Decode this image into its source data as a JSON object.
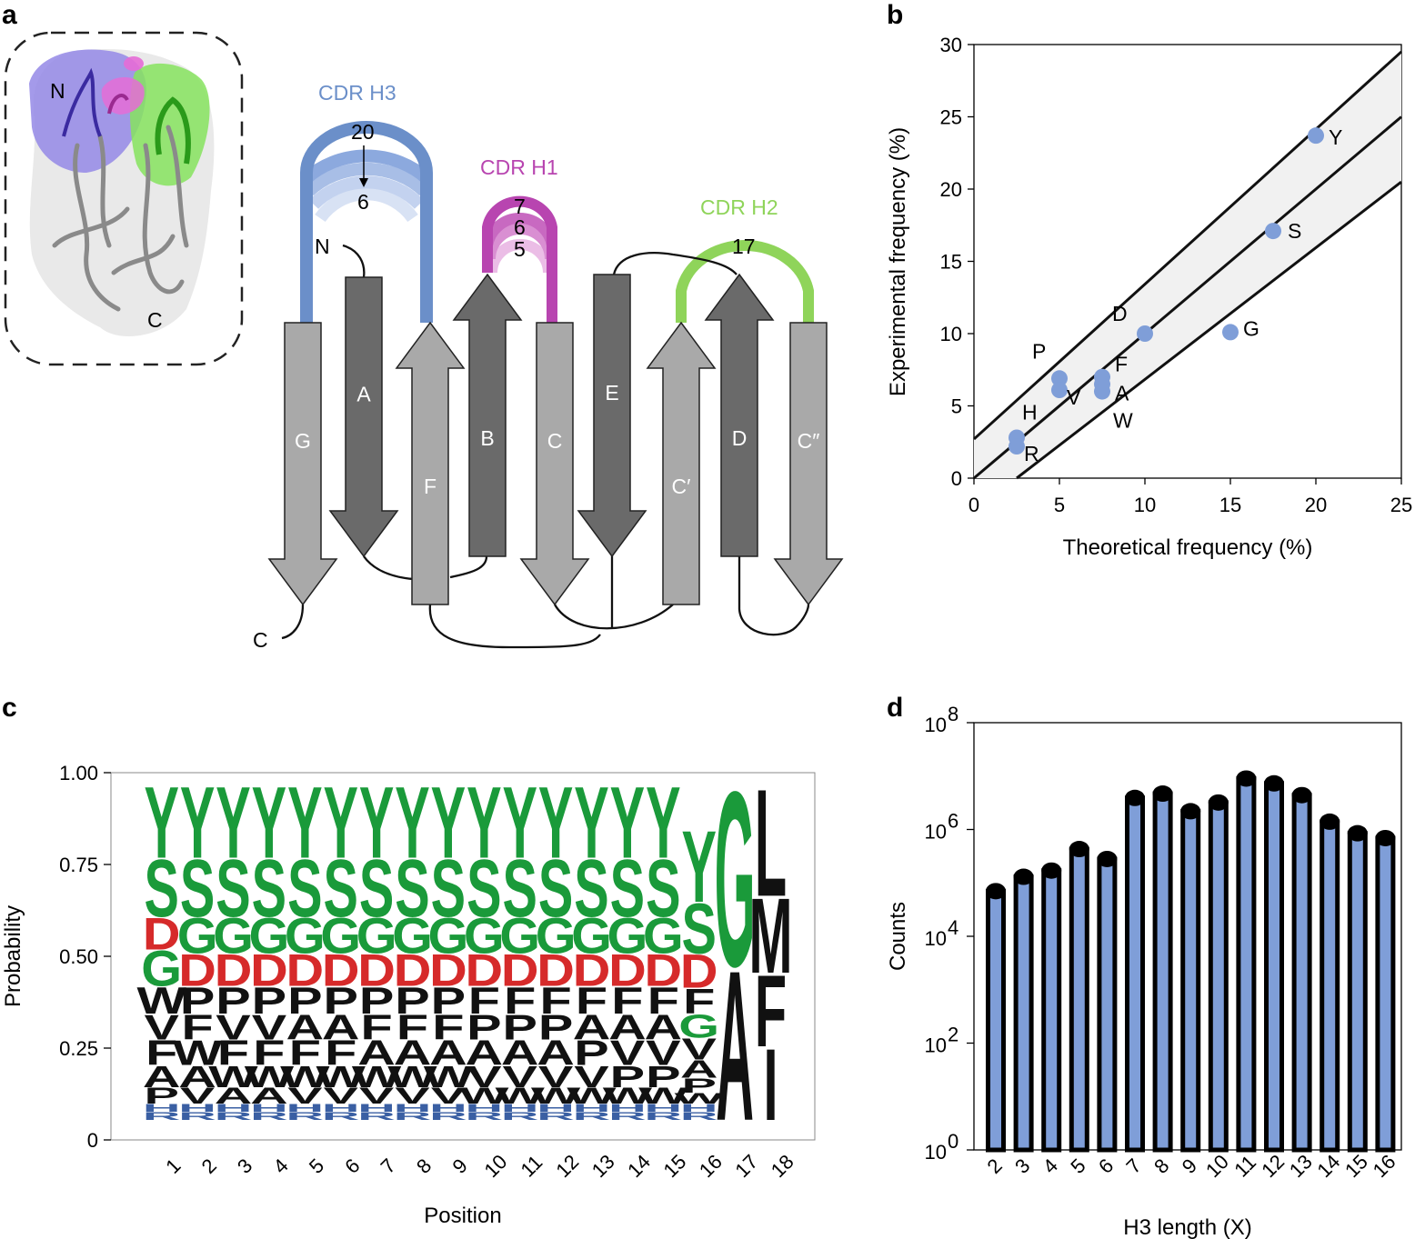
{
  "panels": {
    "a": "a",
    "b": "b",
    "c": "c",
    "d": "d"
  },
  "topology": {
    "structure_labels": {
      "n": "N",
      "c": "C"
    },
    "strands": [
      {
        "label": "G",
        "shade": "light",
        "dir": "down"
      },
      {
        "label": "A",
        "shade": "dark",
        "dir": "down"
      },
      {
        "label": "F",
        "shade": "light",
        "dir": "up"
      },
      {
        "label": "B",
        "shade": "dark",
        "dir": "up"
      },
      {
        "label": "C",
        "shade": "light",
        "dir": "down"
      },
      {
        "label": "E",
        "shade": "dark",
        "dir": "down"
      },
      {
        "label": "C′",
        "shade": "light",
        "dir": "up"
      },
      {
        "label": "D",
        "shade": "dark",
        "dir": "up"
      },
      {
        "label": "C″",
        "shade": "light",
        "dir": "down"
      }
    ],
    "termini": {
      "n": "N",
      "c": "C"
    },
    "cdrs": [
      {
        "name": "CDR H3",
        "color": "#6b8fc9",
        "numbers": [
          "20",
          "6"
        ]
      },
      {
        "name": "CDR H1",
        "color": "#b845b0",
        "numbers": [
          "7",
          "6",
          "5"
        ]
      },
      {
        "name": "CDR H2",
        "color": "#8fd45a",
        "numbers": [
          "17"
        ]
      }
    ]
  },
  "chart_data": [
    {
      "panel": "b",
      "type": "scatter",
      "xlabel": "Theoretical frequency (%)",
      "ylabel": "Experimental frequency (%)",
      "xlim": [
        0,
        25
      ],
      "ylim": [
        0,
        30
      ],
      "xticks": [
        "0",
        "5",
        "10",
        "15",
        "20",
        "25"
      ],
      "yticks": [
        "0",
        "5",
        "10",
        "15",
        "20",
        "25",
        "30"
      ],
      "point_color": "#7f9ed8",
      "points": [
        {
          "label": "Y",
          "x": 20,
          "y": 23.7
        },
        {
          "label": "S",
          "x": 17.5,
          "y": 17.1
        },
        {
          "label": "G",
          "x": 15,
          "y": 10.1
        },
        {
          "label": "D",
          "x": 10,
          "y": 10
        },
        {
          "label": "P",
          "x": 5,
          "y": 6.9
        },
        {
          "label": "V",
          "x": 5,
          "y": 6.1
        },
        {
          "label": "F",
          "x": 7.5,
          "y": 7.0
        },
        {
          "label": "A",
          "x": 7.5,
          "y": 6.5
        },
        {
          "label": "W",
          "x": 7.5,
          "y": 6.0
        },
        {
          "label": "H",
          "x": 2.5,
          "y": 2.8
        },
        {
          "label": "R",
          "x": 2.5,
          "y": 2.2
        }
      ],
      "fit_line": [
        [
          0,
          0
        ],
        [
          25,
          25
        ]
      ],
      "band_upper": [
        [
          0,
          2.7
        ],
        [
          25,
          29.5
        ]
      ],
      "band_lower": [
        [
          2.5,
          0
        ],
        [
          25,
          20.5
        ]
      ]
    },
    {
      "panel": "c",
      "type": "sequence-logo",
      "xlabel": "Position",
      "ylabel": "Probability",
      "ylim": [
        0,
        1
      ],
      "yticks": [
        "0",
        "0.25",
        "0.50",
        "0.75",
        "1.00"
      ],
      "positions": [
        "1",
        "2",
        "3",
        "4",
        "5",
        "6",
        "7",
        "8",
        "9",
        "10",
        "11",
        "12",
        "13",
        "14",
        "15",
        "16",
        "17",
        "18"
      ],
      "stacks": [
        [
          [
            "R",
            0.022
          ],
          [
            "H",
            0.022
          ],
          [
            "P",
            0.045
          ],
          [
            "A",
            0.06
          ],
          [
            "F",
            0.07
          ],
          [
            "V",
            0.07
          ],
          [
            "W",
            0.075
          ],
          [
            "G",
            0.1
          ],
          [
            "D",
            0.09
          ],
          [
            "S",
            0.16
          ],
          [
            "Y",
            0.2
          ]
        ],
        [
          [
            "R",
            0.022
          ],
          [
            "H",
            0.022
          ],
          [
            "V",
            0.045
          ],
          [
            "A",
            0.06
          ],
          [
            "W",
            0.07
          ],
          [
            "F",
            0.07
          ],
          [
            "P",
            0.075
          ],
          [
            "D",
            0.09
          ],
          [
            "G",
            0.1
          ],
          [
            "S",
            0.16
          ],
          [
            "Y",
            0.2
          ]
        ],
        [
          [
            "R",
            0.022
          ],
          [
            "H",
            0.022
          ],
          [
            "A",
            0.045
          ],
          [
            "W",
            0.06
          ],
          [
            "F",
            0.07
          ],
          [
            "V",
            0.07
          ],
          [
            "P",
            0.075
          ],
          [
            "D",
            0.09
          ],
          [
            "G",
            0.1
          ],
          [
            "S",
            0.16
          ],
          [
            "Y",
            0.2
          ]
        ],
        [
          [
            "R",
            0.022
          ],
          [
            "H",
            0.022
          ],
          [
            "A",
            0.045
          ],
          [
            "W",
            0.06
          ],
          [
            "F",
            0.07
          ],
          [
            "V",
            0.07
          ],
          [
            "P",
            0.075
          ],
          [
            "D",
            0.09
          ],
          [
            "G",
            0.1
          ],
          [
            "S",
            0.16
          ],
          [
            "Y",
            0.2
          ]
        ],
        [
          [
            "R",
            0.022
          ],
          [
            "H",
            0.022
          ],
          [
            "V",
            0.045
          ],
          [
            "W",
            0.06
          ],
          [
            "F",
            0.07
          ],
          [
            "A",
            0.07
          ],
          [
            "P",
            0.075
          ],
          [
            "D",
            0.09
          ],
          [
            "G",
            0.1
          ],
          [
            "S",
            0.16
          ],
          [
            "Y",
            0.2
          ]
        ],
        [
          [
            "R",
            0.022
          ],
          [
            "H",
            0.022
          ],
          [
            "V",
            0.045
          ],
          [
            "W",
            0.06
          ],
          [
            "F",
            0.07
          ],
          [
            "A",
            0.07
          ],
          [
            "P",
            0.075
          ],
          [
            "D",
            0.09
          ],
          [
            "G",
            0.1
          ],
          [
            "S",
            0.16
          ],
          [
            "Y",
            0.2
          ]
        ],
        [
          [
            "R",
            0.022
          ],
          [
            "H",
            0.022
          ],
          [
            "V",
            0.045
          ],
          [
            "W",
            0.06
          ],
          [
            "A",
            0.07
          ],
          [
            "F",
            0.07
          ],
          [
            "P",
            0.075
          ],
          [
            "D",
            0.09
          ],
          [
            "G",
            0.1
          ],
          [
            "S",
            0.16
          ],
          [
            "Y",
            0.2
          ]
        ],
        [
          [
            "R",
            0.022
          ],
          [
            "H",
            0.022
          ],
          [
            "V",
            0.045
          ],
          [
            "W",
            0.06
          ],
          [
            "A",
            0.07
          ],
          [
            "F",
            0.07
          ],
          [
            "P",
            0.075
          ],
          [
            "D",
            0.09
          ],
          [
            "G",
            0.1
          ],
          [
            "S",
            0.16
          ],
          [
            "Y",
            0.2
          ]
        ],
        [
          [
            "R",
            0.022
          ],
          [
            "H",
            0.022
          ],
          [
            "V",
            0.045
          ],
          [
            "W",
            0.06
          ],
          [
            "A",
            0.07
          ],
          [
            "F",
            0.07
          ],
          [
            "P",
            0.075
          ],
          [
            "D",
            0.09
          ],
          [
            "G",
            0.1
          ],
          [
            "S",
            0.16
          ],
          [
            "Y",
            0.2
          ]
        ],
        [
          [
            "R",
            0.022
          ],
          [
            "H",
            0.022
          ],
          [
            "W",
            0.045
          ],
          [
            "V",
            0.06
          ],
          [
            "A",
            0.07
          ],
          [
            "P",
            0.07
          ],
          [
            "F",
            0.075
          ],
          [
            "D",
            0.09
          ],
          [
            "G",
            0.1
          ],
          [
            "S",
            0.16
          ],
          [
            "Y",
            0.2
          ]
        ],
        [
          [
            "R",
            0.022
          ],
          [
            "H",
            0.022
          ],
          [
            "W",
            0.045
          ],
          [
            "V",
            0.06
          ],
          [
            "A",
            0.07
          ],
          [
            "P",
            0.07
          ],
          [
            "F",
            0.075
          ],
          [
            "D",
            0.09
          ],
          [
            "G",
            0.1
          ],
          [
            "S",
            0.16
          ],
          [
            "Y",
            0.2
          ]
        ],
        [
          [
            "R",
            0.022
          ],
          [
            "H",
            0.022
          ],
          [
            "W",
            0.045
          ],
          [
            "V",
            0.06
          ],
          [
            "A",
            0.07
          ],
          [
            "P",
            0.07
          ],
          [
            "F",
            0.075
          ],
          [
            "D",
            0.09
          ],
          [
            "G",
            0.1
          ],
          [
            "S",
            0.16
          ],
          [
            "Y",
            0.2
          ]
        ],
        [
          [
            "R",
            0.022
          ],
          [
            "H",
            0.022
          ],
          [
            "W",
            0.045
          ],
          [
            "V",
            0.06
          ],
          [
            "P",
            0.07
          ],
          [
            "A",
            0.07
          ],
          [
            "F",
            0.075
          ],
          [
            "D",
            0.09
          ],
          [
            "G",
            0.1
          ],
          [
            "S",
            0.16
          ],
          [
            "Y",
            0.2
          ]
        ],
        [
          [
            "R",
            0.022
          ],
          [
            "H",
            0.022
          ],
          [
            "W",
            0.045
          ],
          [
            "P",
            0.06
          ],
          [
            "V",
            0.07
          ],
          [
            "A",
            0.07
          ],
          [
            "F",
            0.075
          ],
          [
            "D",
            0.09
          ],
          [
            "G",
            0.1
          ],
          [
            "S",
            0.16
          ],
          [
            "Y",
            0.2
          ]
        ],
        [
          [
            "R",
            0.022
          ],
          [
            "H",
            0.022
          ],
          [
            "W",
            0.045
          ],
          [
            "P",
            0.06
          ],
          [
            "V",
            0.07
          ],
          [
            "A",
            0.07
          ],
          [
            "F",
            0.075
          ],
          [
            "D",
            0.09
          ],
          [
            "G",
            0.1
          ],
          [
            "S",
            0.16
          ],
          [
            "Y",
            0.2
          ]
        ],
        [
          [
            "R",
            0.022
          ],
          [
            "H",
            0.022
          ],
          [
            "W",
            0.03
          ],
          [
            "P",
            0.04
          ],
          [
            "A",
            0.05
          ],
          [
            "V",
            0.06
          ],
          [
            "G",
            0.065
          ],
          [
            "F",
            0.07
          ],
          [
            "D",
            0.095
          ],
          [
            "S",
            0.14
          ],
          [
            "Y",
            0.2
          ]
        ],
        [
          [
            "A",
            0.42
          ],
          [
            "G",
            0.49
          ]
        ],
        [
          [
            "I",
            0.2
          ],
          [
            "F",
            0.2
          ],
          [
            "M",
            0.21
          ],
          [
            "L",
            0.3
          ]
        ]
      ],
      "colors": {
        "green": "#1a9a3a",
        "red": "#d62a2a",
        "black": "#111111",
        "blue": "#3a5fa3"
      },
      "letter_groups": {
        "green": [
          "Y",
          "S",
          "G"
        ],
        "red": [
          "D"
        ],
        "blue": [
          "R",
          "H"
        ]
      }
    },
    {
      "panel": "d",
      "type": "bar",
      "xlabel": "H3 length (X)",
      "ylabel": "Counts",
      "yscale": "log",
      "ylim_exp": [
        0,
        8
      ],
      "yticks": [
        {
          "base": "10",
          "exp": "0"
        },
        {
          "base": "10",
          "exp": "2"
        },
        {
          "base": "10",
          "exp": "4"
        },
        {
          "base": "10",
          "exp": "6"
        },
        {
          "base": "10",
          "exp": "8"
        }
      ],
      "categories": [
        "2",
        "3",
        "4",
        "5",
        "6",
        "7",
        "8",
        "9",
        "10",
        "11",
        "12",
        "13",
        "14",
        "15",
        "16"
      ],
      "values": [
        70000,
        130000,
        170000,
        430000,
        280000,
        3900000,
        4700000,
        2200000,
        3200000,
        9000000,
        7300000,
        4400000,
        1400000,
        850000,
        690000
      ],
      "bar_color": "#7f9ed8"
    }
  ]
}
